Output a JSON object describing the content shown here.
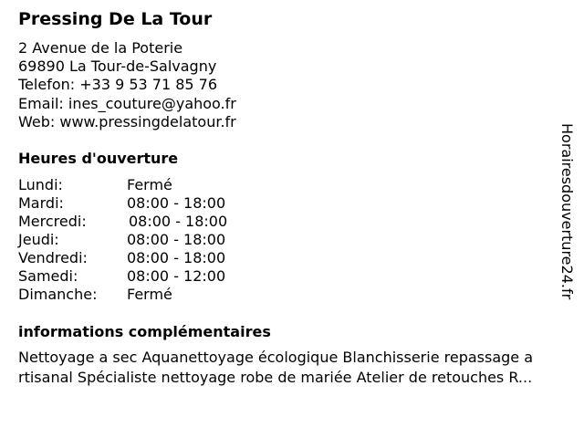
{
  "business": {
    "name": "Pressing De La Tour",
    "address_line1": "2 Avenue de la Poterie",
    "address_line2": "69890 La Tour-de-Salvagny",
    "phone": "Telefon: +33 9 53 71 85 76",
    "email": "Email: ines_couture@yahoo.fr",
    "web": "Web: www.pressingdelatour.fr"
  },
  "hours": {
    "heading": "Heures d'ouverture",
    "days": [
      {
        "day": "Lundi:",
        "time": "Fermé"
      },
      {
        "day": "Mardi:",
        "time": "08:00 - 18:00"
      },
      {
        "day": "Mercredi:",
        "time": "08:00 - 18:00"
      },
      {
        "day": "Jeudi:",
        "time": "08:00 - 18:00"
      },
      {
        "day": "Vendredi:",
        "time": "08:00 - 18:00"
      },
      {
        "day": "Samedi:",
        "time": "08:00 - 12:00"
      },
      {
        "day": "Dimanche:",
        "time": "Fermé"
      }
    ]
  },
  "info": {
    "heading": "informations complémentaires",
    "line1": "Nettoyage a sec Aquanettoyage écologique Blanchisserie repassage a",
    "line2": "rtisanal Spécialiste nettoyage robe de mariée Atelier de retouches R..."
  },
  "watermark": "Horairesdouverture24.fr"
}
